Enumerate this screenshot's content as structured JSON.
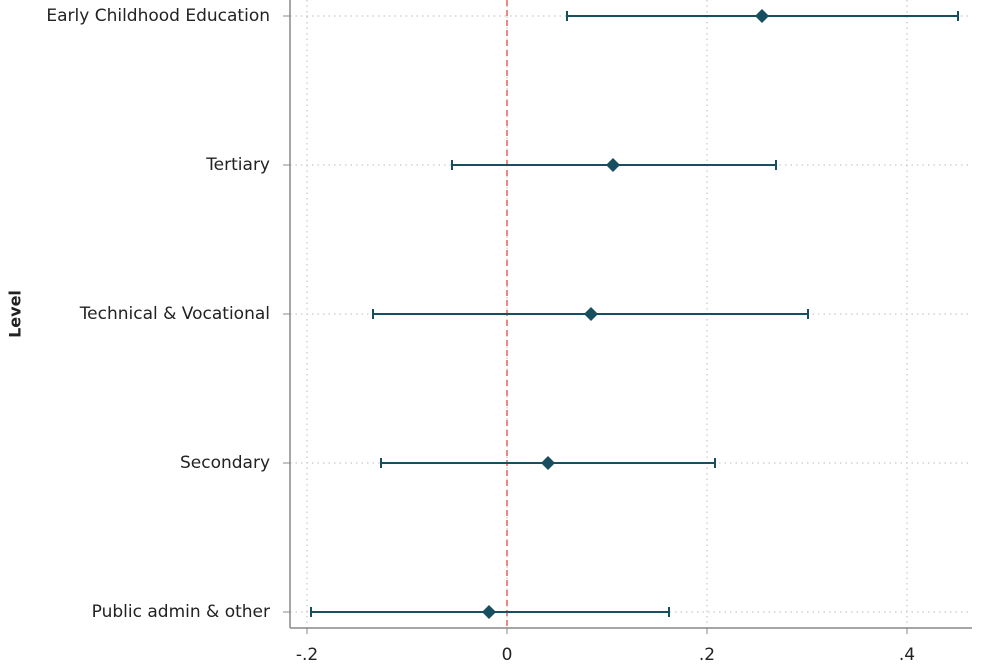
{
  "chart_data": {
    "type": "coefplot",
    "y_label": "Level",
    "categories": [
      "Early Childhood Education",
      "Tertiary",
      "Technical & Vocational",
      "Secondary",
      "Public admin & other"
    ],
    "series": [
      {
        "color": "#174f60",
        "values": [
          0.255,
          0.106,
          0.084,
          0.041,
          -0.018
        ],
        "lower": [
          0.06,
          -0.055,
          -0.134,
          -0.126,
          -0.196
        ],
        "upper": [
          0.451,
          0.269,
          0.301,
          0.208,
          0.162
        ]
      }
    ],
    "xlim": [
      -0.217,
      0.465
    ],
    "xticks": [
      {
        "value": -0.2,
        "label": "-.2"
      },
      0,
      {
        "value": 0.2,
        "label": ".2"
      },
      {
        "value": 0.4,
        "label": ".4"
      }
    ],
    "reference_line": {
      "value": 0,
      "color": "#e8473f"
    },
    "grid": true
  }
}
